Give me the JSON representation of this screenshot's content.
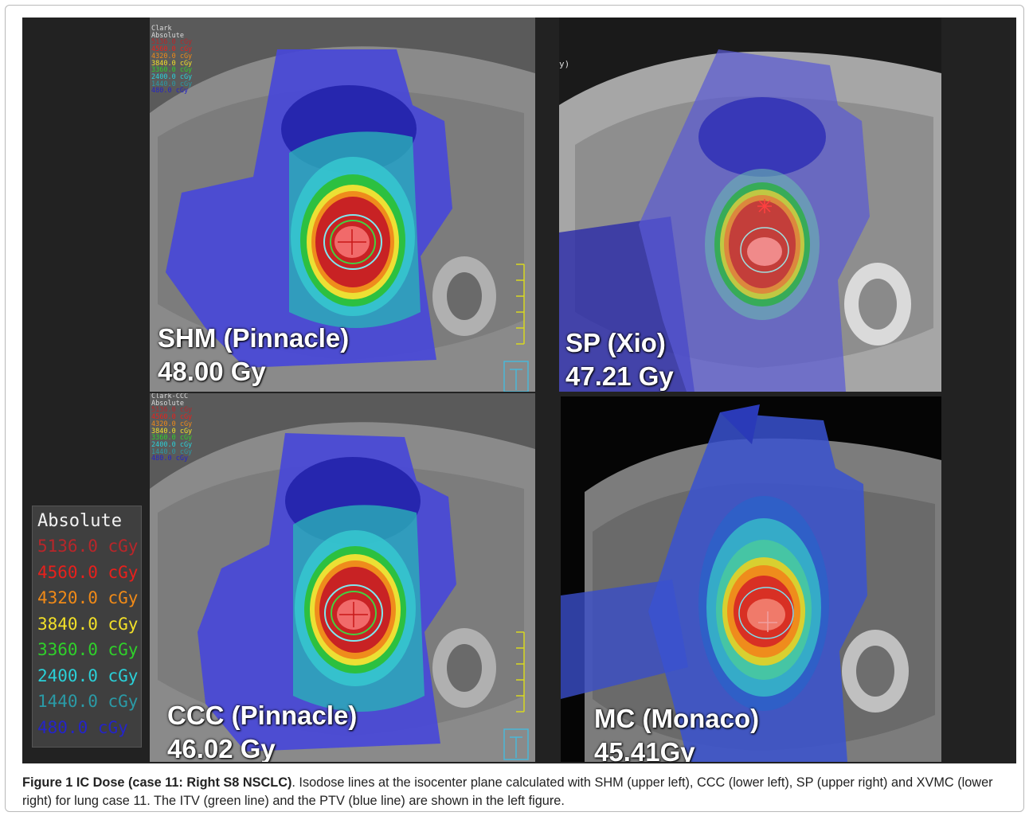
{
  "panels": {
    "shm": {
      "method": "SHM (Pinnacle)",
      "dose": "48.00 Gy",
      "header_line1": "Clark",
      "header_line2": "Absolute"
    },
    "sp": {
      "method": "SP (Xio)",
      "dose": "47.21 Gy",
      "ylabel": "y)"
    },
    "ccc": {
      "method": "CCC (Pinnacle)",
      "dose": "46.02 Gy",
      "header_line1": "Clark-CCC",
      "header_line2": "Absolute"
    },
    "mc": {
      "method": "MC (Monaco)",
      "dose": "45.41Gy"
    }
  },
  "legend": {
    "title": "Absolute",
    "items": [
      {
        "label": "5136.0 cGy",
        "color": "#b8262a"
      },
      {
        "label": "4560.0 cGy",
        "color": "#e8201c"
      },
      {
        "label": "4320.0 cGy",
        "color": "#f08a18"
      },
      {
        "label": "3840.0 cGy",
        "color": "#f2e028"
      },
      {
        "label": "3360.0 cGy",
        "color": "#2fd02a"
      },
      {
        "label": "2400.0 cGy",
        "color": "#2ad0d8"
      },
      {
        "label": "1440.0 cGy",
        "color": "#2a9aa6"
      },
      {
        "label": "480.0 cGy",
        "color": "#2424c8"
      }
    ]
  },
  "caption": {
    "title": "Figure 1 IC Dose (case 11: Right S8 NSCLC)",
    "text": ". Isodose lines at the isocenter plane calculated with SHM (upper left), CCC (lower left), SP (upper right) and XVMC (lower right) for lung case 11. The ITV (green line) and the PTV (blue line) are shown in the left figure."
  }
}
